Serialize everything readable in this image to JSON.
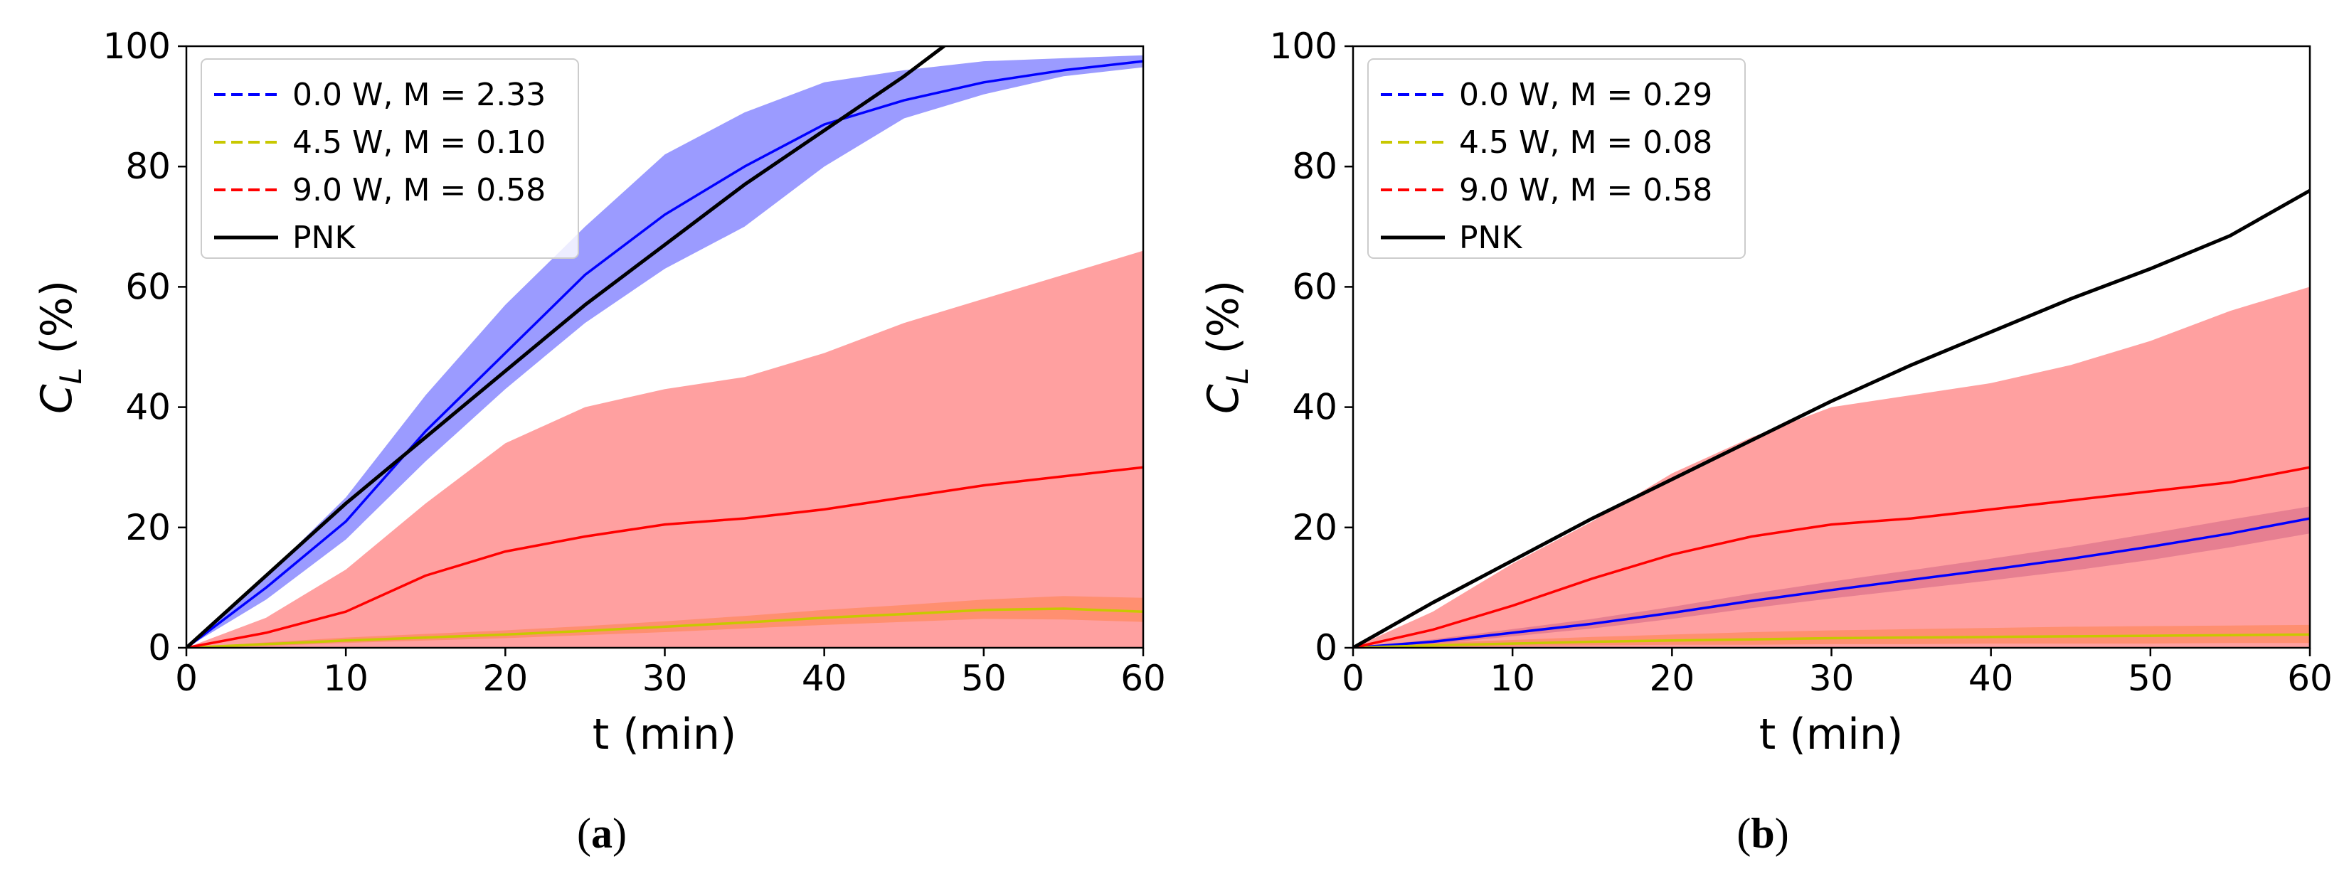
{
  "chart_data": [
    {
      "panel": "a",
      "type": "line",
      "panel_label_open": "(",
      "panel_label_letter": "a",
      "panel_label_close": ")",
      "xlabel": "t (min)",
      "ylabel_main": "C",
      "ylabel_sub": "L",
      "ylabel_unit": " (%)",
      "xlim": [
        0,
        60
      ],
      "ylim": [
        0,
        100
      ],
      "xticks": [
        0,
        10,
        20,
        30,
        40,
        50,
        60
      ],
      "yticks": [
        0,
        20,
        40,
        60,
        80,
        100
      ],
      "grid": false,
      "legend_position": "top-left",
      "series": [
        {
          "name": "0.0 W, M = 2.33",
          "color": "#0000ff",
          "band_color": "#7a7aff",
          "line_style": "dashed-legend",
          "x": [
            0,
            5,
            10,
            15,
            20,
            25,
            30,
            35,
            40,
            45,
            50,
            55,
            60
          ],
          "mean": [
            0,
            10,
            21,
            36,
            49,
            62,
            72,
            80,
            87,
            91,
            94,
            96,
            97.5
          ],
          "lower": [
            0,
            8,
            18,
            31,
            43,
            54,
            63,
            70,
            80,
            88,
            92,
            95,
            96.5
          ],
          "upper": [
            0,
            12,
            25,
            42,
            57,
            70,
            82,
            89,
            94,
            96,
            97.5,
            98,
            98.5
          ]
        },
        {
          "name": "4.5 W, M = 0.10",
          "color": "#c8c800",
          "band_color": "#ffa500",
          "line_style": "dashed-legend",
          "x": [
            0,
            5,
            10,
            15,
            20,
            25,
            30,
            35,
            40,
            45,
            50,
            55,
            60
          ],
          "mean": [
            0,
            0.6,
            1.2,
            1.7,
            2.2,
            2.8,
            3.5,
            4.2,
            5,
            5.6,
            6.3,
            6.5,
            6
          ],
          "lower": [
            0,
            0.3,
            0.8,
            1.2,
            1.6,
            2.1,
            2.6,
            3.2,
            3.8,
            4.3,
            4.8,
            4.7,
            4.3
          ],
          "upper": [
            0,
            0.9,
            1.7,
            2.3,
            2.9,
            3.6,
            4.4,
            5.3,
            6.3,
            7.1,
            8,
            8.6,
            8.3
          ]
        },
        {
          "name": "9.0 W, M = 0.58",
          "color": "#ff0000",
          "band_color": "#ff8080",
          "line_style": "dashed-legend",
          "x": [
            0,
            5,
            10,
            15,
            20,
            25,
            30,
            35,
            40,
            45,
            50,
            55,
            60
          ],
          "mean": [
            0,
            2.5,
            6,
            12,
            16,
            18.5,
            20.5,
            21.5,
            23,
            25,
            27,
            28.5,
            30
          ],
          "lower": [
            0,
            0,
            0,
            0,
            0,
            0,
            0,
            0,
            0,
            0,
            0,
            0,
            0
          ],
          "upper": [
            0,
            5,
            13,
            24,
            34,
            40,
            43,
            45,
            49,
            54,
            58,
            62,
            66
          ]
        },
        {
          "name": "PNK",
          "color": "#000000",
          "line_style": "solid",
          "x": [
            0,
            5,
            10,
            15,
            20,
            25,
            30,
            35,
            40,
            45,
            47.5
          ],
          "mean": [
            0,
            12,
            24,
            35,
            46,
            57,
            67,
            77,
            86,
            95,
            100
          ]
        }
      ]
    },
    {
      "panel": "b",
      "type": "line",
      "panel_label_open": "(",
      "panel_label_letter": "b",
      "panel_label_close": ")",
      "xlabel": "t (min)",
      "ylabel_main": "C",
      "ylabel_sub": "L",
      "ylabel_unit": " (%)",
      "xlim": [
        0,
        60
      ],
      "ylim": [
        0,
        100
      ],
      "xticks": [
        0,
        10,
        20,
        30,
        40,
        50,
        60
      ],
      "yticks": [
        0,
        20,
        40,
        60,
        80,
        100
      ],
      "grid": false,
      "legend_position": "top-left",
      "series": [
        {
          "name": "0.0 W, M = 0.29",
          "color": "#0000ff",
          "band_color": "#7a50b0",
          "line_style": "dashed-legend",
          "x": [
            0,
            5,
            10,
            15,
            20,
            25,
            30,
            35,
            40,
            45,
            50,
            55,
            60
          ],
          "mean": [
            0,
            1,
            2.5,
            4,
            5.8,
            7.8,
            9.6,
            11.3,
            13,
            14.8,
            16.8,
            19,
            21.5
          ],
          "lower": [
            0,
            0.6,
            1.9,
            3.2,
            4.8,
            6.6,
            8.2,
            9.7,
            11.2,
            12.8,
            14.6,
            16.7,
            19
          ],
          "upper": [
            0,
            1.4,
            3.1,
            4.8,
            6.8,
            9,
            11,
            12.9,
            14.8,
            16.8,
            19,
            21.3,
            23.5
          ]
        },
        {
          "name": "4.5 W, M = 0.08",
          "color": "#c8c800",
          "band_color": "#ffa500",
          "line_style": "dashed-legend",
          "x": [
            0,
            5,
            10,
            15,
            20,
            25,
            30,
            35,
            40,
            45,
            50,
            55,
            60
          ],
          "mean": [
            0,
            0.4,
            0.7,
            1,
            1.2,
            1.4,
            1.6,
            1.7,
            1.8,
            1.9,
            2,
            2.1,
            2.2
          ],
          "lower": [
            0,
            0.1,
            0.3,
            0.4,
            0.5,
            0.5,
            0.6,
            0.6,
            0.7,
            0.7,
            0.7,
            0.8,
            0.8
          ],
          "upper": [
            0,
            0.8,
            1.3,
            1.8,
            2.2,
            2.6,
            2.9,
            3.1,
            3.3,
            3.5,
            3.6,
            3.7,
            3.8
          ]
        },
        {
          "name": "9.0 W, M = 0.58",
          "color": "#ff0000",
          "band_color": "#ff8080",
          "line_style": "dashed-legend",
          "x": [
            0,
            5,
            10,
            15,
            20,
            25,
            30,
            35,
            40,
            45,
            50,
            55,
            60
          ],
          "mean": [
            0,
            3,
            7,
            11.5,
            15.5,
            18.5,
            20.5,
            21.5,
            23,
            24.5,
            26,
            27.5,
            30
          ],
          "lower": [
            0,
            0,
            0,
            0,
            0,
            0,
            0,
            0,
            0,
            0,
            0,
            0,
            0
          ],
          "upper": [
            0,
            6,
            14,
            21,
            29,
            35,
            40,
            42,
            44,
            47,
            51,
            56,
            60
          ]
        },
        {
          "name": "PNK",
          "color": "#000000",
          "line_style": "solid",
          "x": [
            0,
            5,
            10,
            15,
            20,
            25,
            30,
            35,
            40,
            45,
            50,
            55,
            60
          ],
          "mean": [
            0,
            7.5,
            14.5,
            21.5,
            28,
            34.5,
            41,
            47,
            52.5,
            58,
            63,
            68.5,
            76
          ]
        }
      ]
    }
  ]
}
